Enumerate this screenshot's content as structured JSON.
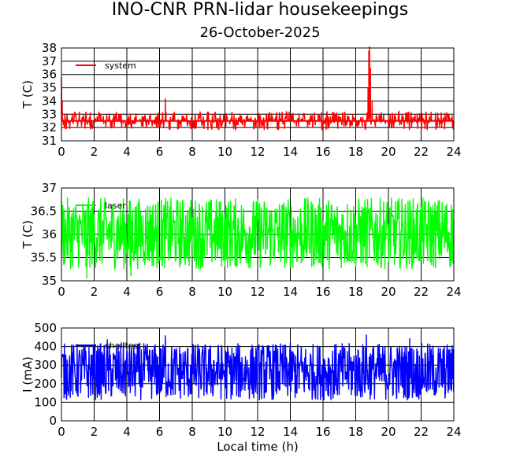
{
  "header": {
    "title": "INO-CNR PRN-lidar housekeepings",
    "subtitle": "26-October-2025"
  },
  "chart_data": [
    {
      "type": "line",
      "id": "system",
      "ylabel": "T (C)",
      "xlabel": "",
      "xlim": [
        0,
        24
      ],
      "ylim": [
        31,
        38
      ],
      "xticks": [
        0,
        2,
        4,
        6,
        8,
        10,
        12,
        14,
        16,
        18,
        20,
        22,
        24
      ],
      "yticks": [
        31,
        32,
        33,
        34,
        35,
        36,
        37,
        38
      ],
      "grid": true,
      "legend_position": "top-left",
      "series": [
        {
          "name": "system",
          "color": "#ff0000",
          "baseline": 32.5,
          "band": [
            31.6,
            33.4
          ],
          "x": [
            0,
            0.05,
            0.1,
            0.15,
            6.3,
            6.35,
            6.4,
            18.7,
            18.75,
            18.8,
            18.85,
            18.9,
            19.0,
            19.1,
            24
          ],
          "y": [
            35.8,
            34.0,
            32.6,
            32.5,
            32.5,
            34.2,
            32.5,
            32.5,
            35.0,
            37.8,
            38.3,
            36.5,
            34.0,
            32.5,
            32.5
          ]
        }
      ]
    },
    {
      "type": "line",
      "id": "laser",
      "ylabel": "T (C)",
      "xlabel": "",
      "xlim": [
        0,
        24
      ],
      "ylim": [
        35,
        37
      ],
      "xticks": [
        0,
        2,
        4,
        6,
        8,
        10,
        12,
        14,
        16,
        18,
        20,
        22,
        24
      ],
      "yticks": [
        35,
        35.5,
        36,
        36.5,
        37
      ],
      "grid": true,
      "legend_position": "top-left",
      "series": [
        {
          "name": "laser",
          "color": "#00ff00",
          "baseline": 36.0,
          "band": [
            35.25,
            36.8
          ],
          "x": [
            1.5,
            1.55,
            4.2,
            4.25
          ],
          "y": [
            35.3,
            35.05,
            35.3,
            35.1
          ]
        }
      ]
    },
    {
      "type": "line",
      "id": "shelltest",
      "ylabel": "I (mA)",
      "xlabel": "Local time (h)",
      "xlim": [
        0,
        24
      ],
      "ylim": [
        0,
        500
      ],
      "xticks": [
        0,
        2,
        4,
        6,
        8,
        10,
        12,
        14,
        16,
        18,
        20,
        22,
        24
      ],
      "yticks": [
        0,
        100,
        200,
        300,
        400,
        500
      ],
      "grid": true,
      "legend_position": "top-left",
      "series": [
        {
          "name": "shelltest",
          "color": "#0000ff",
          "baseline": 265,
          "band": [
            110,
            420
          ],
          "x": [
            6.3,
            6.35,
            18.6,
            18.65,
            2.8,
            21.3
          ],
          "y": [
            400,
            460,
            400,
            465,
            440,
            445
          ]
        }
      ]
    }
  ]
}
